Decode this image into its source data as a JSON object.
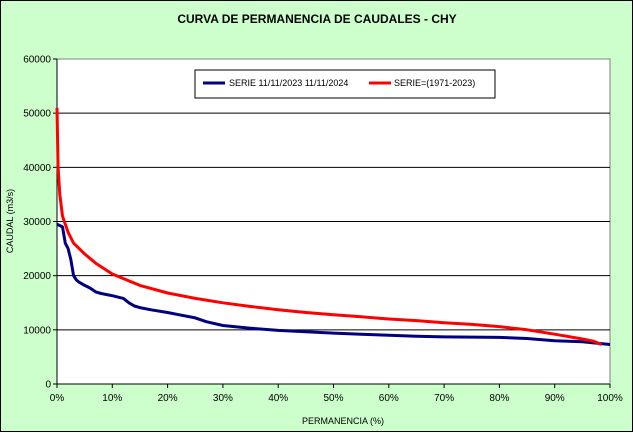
{
  "chart_data": {
    "type": "line",
    "title": "CURVA DE PERMANENCIA DE CAUDALES - CHY",
    "xlabel": "PERMANENCIA (%)",
    "ylabel": "CAUDAL (m3/s)",
    "xlim": [
      0,
      100
    ],
    "ylim": [
      0,
      60000
    ],
    "x_ticks": [
      "0%",
      "10%",
      "20%",
      "30%",
      "40%",
      "50%",
      "60%",
      "70%",
      "80%",
      "90%",
      "100%"
    ],
    "y_ticks": [
      "0",
      "10000",
      "20000",
      "30000",
      "40000",
      "50000",
      "60000"
    ],
    "grid": "horizontal",
    "legend_position": "top-center",
    "colors": {
      "background": "#ccffcc",
      "plot_area": "#ffffff"
    },
    "series": [
      {
        "name": "SERIE 11/11/2023 11/11/2024",
        "color": "#000080",
        "x": [
          0,
          1,
          1.5,
          2,
          2.5,
          3,
          3.5,
          4,
          5,
          6,
          7,
          8,
          9,
          10,
          12,
          13,
          14,
          15,
          17,
          20,
          22,
          25,
          27,
          30,
          35,
          40,
          45,
          50,
          55,
          60,
          65,
          70,
          75,
          80,
          85,
          90,
          95,
          100
        ],
        "y": [
          29500,
          29000,
          26000,
          25000,
          23000,
          20000,
          19200,
          18800,
          18200,
          17700,
          17000,
          16700,
          16500,
          16300,
          15800,
          15000,
          14400,
          14100,
          13700,
          13200,
          12800,
          12200,
          11500,
          10800,
          10300,
          9900,
          9650,
          9400,
          9200,
          9000,
          8800,
          8700,
          8650,
          8600,
          8400,
          8000,
          7800,
          7300
        ]
      },
      {
        "name": "SERIE=(1971-2023)",
        "color": "#ff0000",
        "x": [
          0,
          0.2,
          0.5,
          1,
          2,
          3,
          5,
          7,
          10,
          15,
          20,
          25,
          30,
          35,
          40,
          45,
          50,
          55,
          60,
          65,
          70,
          75,
          80,
          85,
          90,
          95,
          97,
          98.5
        ],
        "y": [
          51000,
          40000,
          35000,
          31000,
          28000,
          26000,
          24000,
          22300,
          20300,
          18200,
          16800,
          15800,
          15000,
          14300,
          13700,
          13200,
          12800,
          12400,
          12000,
          11700,
          11300,
          11000,
          10600,
          10000,
          9200,
          8300,
          7900,
          7300
        ]
      }
    ]
  }
}
